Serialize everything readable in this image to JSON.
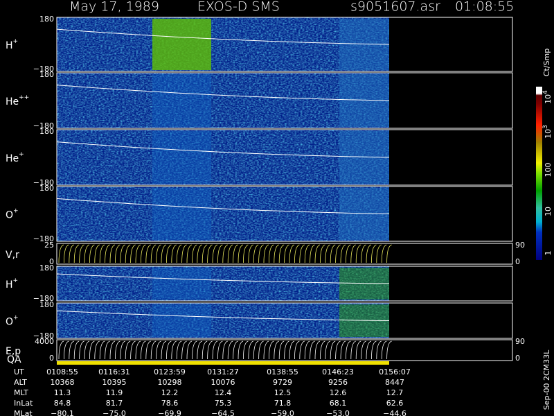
{
  "header": {
    "date": "May 17, 1989",
    "instrument": "EXOS-D SMS",
    "file": "s9051607.asr",
    "time": "01:08:55"
  },
  "panels": [
    {
      "label": "H",
      "sup": "+",
      "yticks": [
        "180",
        "−180"
      ]
    },
    {
      "label": "He",
      "sup": "++",
      "yticks": [
        "180",
        "−180"
      ]
    },
    {
      "label": "He",
      "sup": "+",
      "yticks": [
        "180",
        "−180"
      ]
    },
    {
      "label": "O",
      "sup": "+",
      "yticks": [
        "180",
        "−180"
      ]
    },
    {
      "label": "V,r",
      "yticks": [
        "25",
        "0"
      ],
      "right_ticks": [
        "90",
        "0"
      ]
    },
    {
      "label": "H",
      "sup": "+",
      "yticks": [
        "180",
        "−180"
      ]
    },
    {
      "label": "O",
      "sup": "+",
      "yticks": [
        "180",
        "−180"
      ]
    },
    {
      "label": "E,p",
      "yticks": [
        "4000",
        "0"
      ],
      "right_ticks": [
        "90",
        "0"
      ]
    }
  ],
  "qa_label": "QA",
  "colorbar": {
    "unit": "Ct/Smp",
    "labels": [
      {
        "base": "10",
        "sup": "4"
      },
      {
        "base": "10",
        "sup": "3"
      },
      {
        "base": "100"
      },
      {
        "base": "10"
      },
      {
        "base": "1"
      }
    ]
  },
  "table": {
    "rows": [
      [
        "UT",
        "0108:55",
        "0116:31",
        "0123:59",
        "0131:27",
        "0138:55",
        "0146:23",
        "0156:07"
      ],
      [
        "ALT",
        "10368",
        "10395",
        "10298",
        "10076",
        "9729",
        "9256",
        "8447"
      ],
      [
        "MLT",
        "11.3",
        "11.9",
        "12.2",
        "12.4",
        "12.5",
        "12.6",
        "12.7"
      ],
      [
        "InLat",
        "84.8",
        "81.7",
        "78.6",
        "75.3",
        "71.8",
        "68.1",
        "62.6"
      ],
      [
        "MLat",
        "−80.1",
        "−75.0",
        "−69.9",
        "−64.5",
        "−59.0",
        "−53.0",
        "−44.6"
      ]
    ]
  },
  "footer": "Sep-00 2CM33L"
}
